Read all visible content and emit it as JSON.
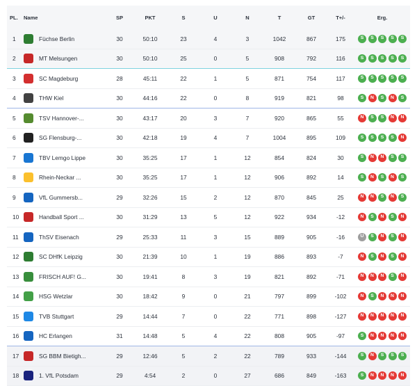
{
  "headers": {
    "pl": "PL.",
    "name": "Name",
    "sp": "SP",
    "pkt": "PKT",
    "s": "S",
    "u": "U",
    "n": "N",
    "t": "T",
    "gt": "GT",
    "diff": "T+/-",
    "erg": "Erg."
  },
  "rows": [
    {
      "rank": "1",
      "team": "Füchse Berlin",
      "logo_color": "#2e7d32",
      "sp": "30",
      "pkt": "50:10",
      "s": "23",
      "u": "4",
      "n": "3",
      "t": "1042",
      "gt": "867",
      "diff": "175",
      "form": [
        "S",
        "S",
        "S",
        "S",
        "S"
      ]
    },
    {
      "rank": "2",
      "team": "MT Melsungen",
      "logo_color": "#c62828",
      "sp": "30",
      "pkt": "50:10",
      "s": "25",
      "u": "0",
      "n": "5",
      "t": "908",
      "gt": "792",
      "diff": "116",
      "form": [
        "S",
        "S",
        "S",
        "S",
        "S"
      ]
    },
    {
      "rank": "3",
      "team": "SC Magdeburg",
      "logo_color": "#d32f2f",
      "sp": "28",
      "pkt": "45:11",
      "s": "22",
      "u": "1",
      "n": "5",
      "t": "871",
      "gt": "754",
      "diff": "117",
      "form": [
        "S",
        "S",
        "S",
        "S",
        "S"
      ]
    },
    {
      "rank": "4",
      "team": "THW Kiel",
      "logo_color": "#424242",
      "sp": "30",
      "pkt": "44:16",
      "s": "22",
      "u": "0",
      "n": "8",
      "t": "919",
      "gt": "821",
      "diff": "98",
      "form": [
        "S",
        "N",
        "S",
        "N",
        "S"
      ]
    },
    {
      "rank": "5",
      "team": "TSV Hannover-...",
      "logo_color": "#558b2f",
      "sp": "30",
      "pkt": "43:17",
      "s": "20",
      "u": "3",
      "n": "7",
      "t": "920",
      "gt": "865",
      "diff": "55",
      "form": [
        "N",
        "S",
        "S",
        "N",
        "N"
      ]
    },
    {
      "rank": "6",
      "team": "SG Flensburg-...",
      "logo_color": "#212121",
      "sp": "30",
      "pkt": "42:18",
      "s": "19",
      "u": "4",
      "n": "7",
      "t": "1004",
      "gt": "895",
      "diff": "109",
      "form": [
        "S",
        "S",
        "S",
        "S",
        "N"
      ]
    },
    {
      "rank": "7",
      "team": "TBV Lemgo Lippe",
      "logo_color": "#1976d2",
      "sp": "30",
      "pkt": "35:25",
      "s": "17",
      "u": "1",
      "n": "12",
      "t": "854",
      "gt": "824",
      "diff": "30",
      "form": [
        "S",
        "N",
        "N",
        "S",
        "S"
      ]
    },
    {
      "rank": "8",
      "team": "Rhein-Neckar ...",
      "logo_color": "#fbc02d",
      "sp": "30",
      "pkt": "35:25",
      "s": "17",
      "u": "1",
      "n": "12",
      "t": "906",
      "gt": "892",
      "diff": "14",
      "form": [
        "S",
        "N",
        "S",
        "N",
        "S"
      ]
    },
    {
      "rank": "9",
      "team": "VfL Gummersb...",
      "logo_color": "#1565c0",
      "sp": "29",
      "pkt": "32:26",
      "s": "15",
      "u": "2",
      "n": "12",
      "t": "870",
      "gt": "845",
      "diff": "25",
      "form": [
        "N",
        "N",
        "S",
        "N",
        "S"
      ]
    },
    {
      "rank": "10",
      "team": "Handball Sport ...",
      "logo_color": "#c62828",
      "sp": "30",
      "pkt": "31:29",
      "s": "13",
      "u": "5",
      "n": "12",
      "t": "922",
      "gt": "934",
      "diff": "-12",
      "form": [
        "N",
        "S",
        "N",
        "S",
        "N"
      ]
    },
    {
      "rank": "11",
      "team": "ThSV Eisenach",
      "logo_color": "#1565c0",
      "sp": "29",
      "pkt": "25:33",
      "s": "11",
      "u": "3",
      "n": "15",
      "t": "889",
      "gt": "905",
      "diff": "-16",
      "form": [
        "U",
        "S",
        "N",
        "S",
        "N"
      ]
    },
    {
      "rank": "12",
      "team": "SC DHfK Leipzig",
      "logo_color": "#2e7d32",
      "sp": "30",
      "pkt": "21:39",
      "s": "10",
      "u": "1",
      "n": "19",
      "t": "886",
      "gt": "893",
      "diff": "-7",
      "form": [
        "N",
        "S",
        "N",
        "S",
        "N"
      ]
    },
    {
      "rank": "13",
      "team": "FRISCH AUF! G...",
      "logo_color": "#388e3c",
      "sp": "30",
      "pkt": "19:41",
      "s": "8",
      "u": "3",
      "n": "19",
      "t": "821",
      "gt": "892",
      "diff": "-71",
      "form": [
        "N",
        "N",
        "N",
        "S",
        "N"
      ]
    },
    {
      "rank": "14",
      "team": "HSG Wetzlar",
      "logo_color": "#43a047",
      "sp": "30",
      "pkt": "18:42",
      "s": "9",
      "u": "0",
      "n": "21",
      "t": "797",
      "gt": "899",
      "diff": "-102",
      "form": [
        "N",
        "S",
        "N",
        "N",
        "N"
      ]
    },
    {
      "rank": "15",
      "team": "TVB Stuttgart",
      "logo_color": "#1e88e5",
      "sp": "29",
      "pkt": "14:44",
      "s": "7",
      "u": "0",
      "n": "22",
      "t": "771",
      "gt": "898",
      "diff": "-127",
      "form": [
        "N",
        "N",
        "N",
        "N",
        "N"
      ]
    },
    {
      "rank": "16",
      "team": "HC Erlangen",
      "logo_color": "#1565c0",
      "sp": "31",
      "pkt": "14:48",
      "s": "5",
      "u": "4",
      "n": "22",
      "t": "808",
      "gt": "905",
      "diff": "-97",
      "form": [
        "S",
        "N",
        "N",
        "N",
        "N"
      ]
    },
    {
      "rank": "17",
      "team": "SG BBM Bietigh...",
      "logo_color": "#c62828",
      "sp": "29",
      "pkt": "12:46",
      "s": "5",
      "u": "2",
      "n": "22",
      "t": "789",
      "gt": "933",
      "diff": "-144",
      "form": [
        "S",
        "N",
        "S",
        "S",
        "S"
      ]
    },
    {
      "rank": "18",
      "team": "1. VfL Potsdam",
      "logo_color": "#1a237e",
      "sp": "29",
      "pkt": "4:54",
      "s": "2",
      "u": "0",
      "n": "27",
      "t": "686",
      "gt": "849",
      "diff": "-163",
      "form": [
        "S",
        "N",
        "N",
        "N",
        "N"
      ]
    }
  ]
}
